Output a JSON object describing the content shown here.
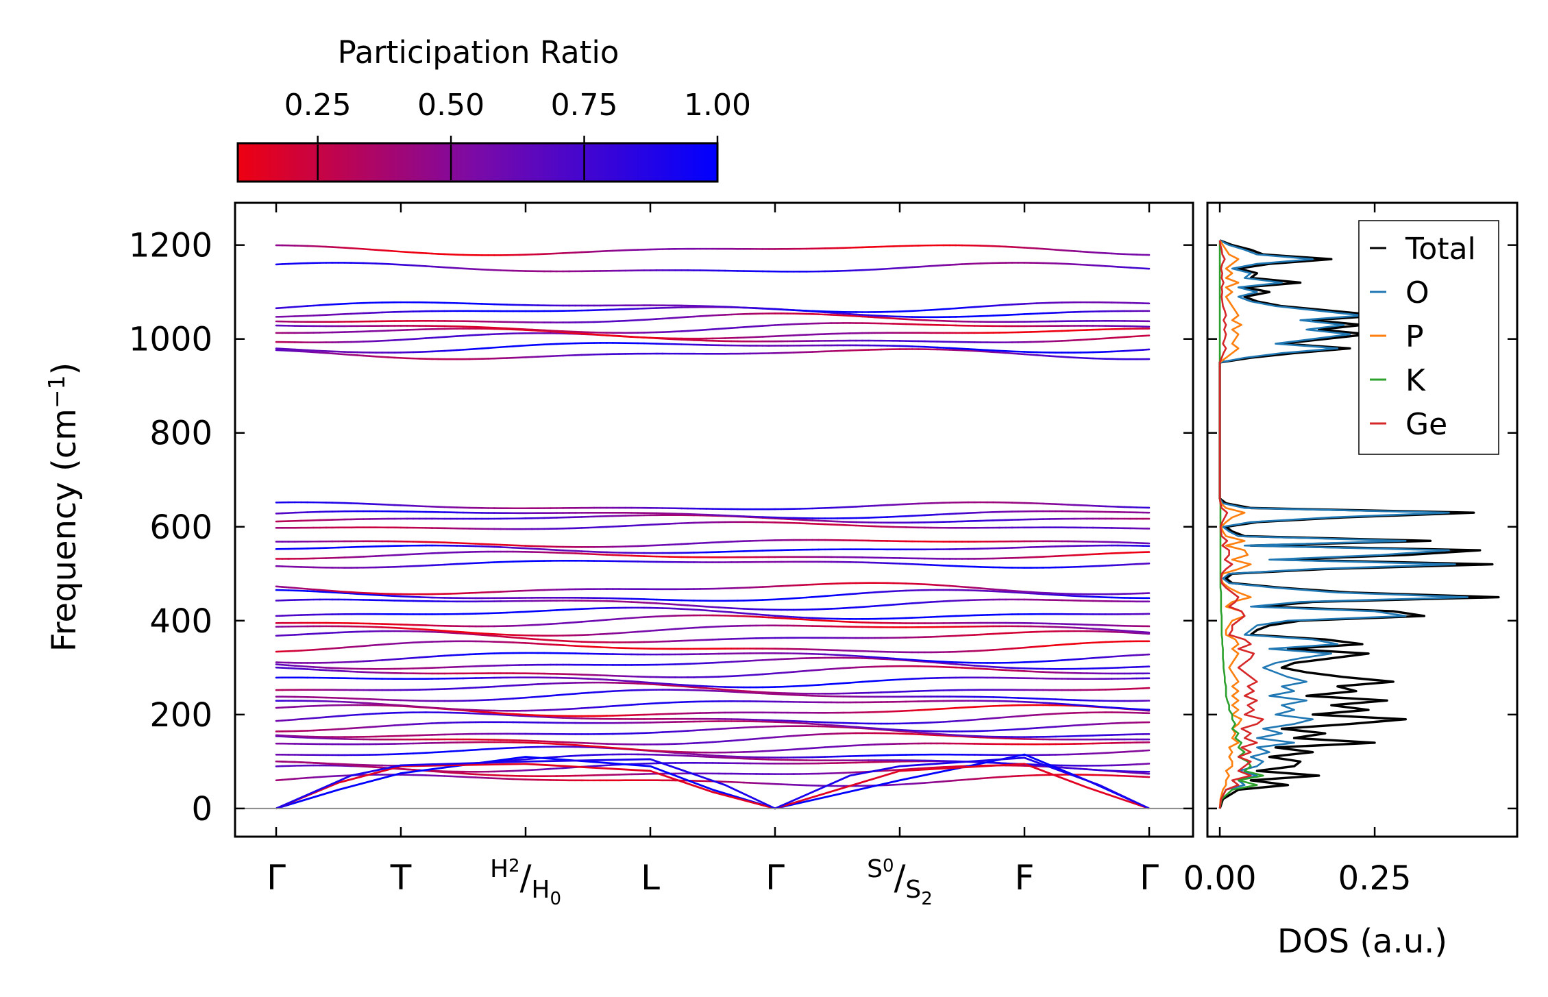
{
  "chart_data": [
    {
      "type": "line",
      "panel": "phonon-band-structure",
      "ylabel": "Frequency (cm",
      "ylabel_sup": "−1",
      "ylabel_end": ")",
      "ylim": [
        -60,
        1290
      ],
      "yticks": [
        0,
        200,
        400,
        600,
        800,
        1000,
        1200
      ],
      "ytick_labels": [
        "0",
        "200",
        "400",
        "600",
        "800",
        "1000",
        "1200"
      ],
      "kpath_range": [
        0,
        7
      ],
      "kpoints": [
        {
          "x": 0,
          "label": "Γ"
        },
        {
          "x": 1,
          "label": "T"
        },
        {
          "x": 2,
          "label_a": "H",
          "sub_a": "2",
          "label_b": "H",
          "sub_b": "0"
        },
        {
          "x": 3,
          "label": "L"
        },
        {
          "x": 4,
          "label": "Γ"
        },
        {
          "x": 5,
          "label_a": "S",
          "sub_a": "0",
          "label_b": "S",
          "sub_b": "2"
        },
        {
          "x": 6,
          "label": "F"
        },
        {
          "x": 7,
          "label": "Γ"
        }
      ],
      "zero_line": 0,
      "acoustic_branches": [
        {
          "name": "acoustic-1",
          "points": [
            [
              0,
              0
            ],
            [
              0.5,
              40
            ],
            [
              1,
              75
            ],
            [
              2,
              110
            ],
            [
              3,
              90
            ],
            [
              3.5,
              40
            ],
            [
              4,
              0
            ],
            [
              5,
              60
            ],
            [
              6,
              115
            ],
            [
              6.5,
              60
            ],
            [
              7,
              0
            ]
          ]
        },
        {
          "name": "acoustic-2",
          "points": [
            [
              0,
              0
            ],
            [
              0.5,
              55
            ],
            [
              1,
              90
            ],
            [
              2,
              95
            ],
            [
              3,
              80
            ],
            [
              3.5,
              35
            ],
            [
              4,
              0
            ],
            [
              5,
              80
            ],
            [
              6,
              95
            ],
            [
              6.5,
              45
            ],
            [
              7,
              0
            ]
          ]
        },
        {
          "name": "acoustic-3",
          "points": [
            [
              0,
              0
            ],
            [
              0.6,
              70
            ],
            [
              1,
              92
            ],
            [
              2,
              100
            ],
            [
              3,
              105
            ],
            [
              3.6,
              50
            ],
            [
              4,
              0
            ],
            [
              4.6,
              70
            ],
            [
              5,
              90
            ],
            [
              6,
              108
            ],
            [
              6.6,
              50
            ],
            [
              7,
              0
            ]
          ]
        }
      ],
      "optical_band_levels": [
        60,
        78,
        92,
        103,
        118,
        133,
        148,
        162,
        178,
        192,
        207,
        222,
        240,
        255,
        272,
        290,
        308,
        324,
        343,
        365,
        382,
        398,
        415,
        437,
        452,
        468,
        522,
        538,
        552,
        566,
        601,
        617,
        627,
        643,
        968,
        983,
        1000,
        1012,
        1025,
        1042,
        1058,
        1069,
        1150,
        1190
      ],
      "colorbar": {
        "label": "Participation Ratio",
        "range": [
          0.1,
          1.0
        ],
        "ticks": [
          0.25,
          0.5,
          0.75,
          1.0
        ],
        "tick_labels": [
          "0.25",
          "0.50",
          "0.75",
          "1.00"
        ],
        "color_low": "#ee0011",
        "color_mid": "#7a0aa8",
        "color_high": "#0000ff"
      }
    },
    {
      "type": "line",
      "panel": "density-of-states",
      "xlabel": "DOS (a.u.)",
      "xlim": [
        -0.02,
        0.48
      ],
      "xticks": [
        0.0,
        0.25
      ],
      "xtick_labels": [
        "0.00",
        "0.25"
      ],
      "ylim": [
        -60,
        1290
      ],
      "frequency": [
        0,
        20,
        40,
        50,
        60,
        70,
        80,
        90,
        100,
        110,
        120,
        130,
        140,
        150,
        160,
        170,
        180,
        190,
        200,
        210,
        220,
        230,
        240,
        250,
        260,
        270,
        280,
        290,
        300,
        310,
        320,
        330,
        340,
        350,
        360,
        370,
        380,
        390,
        400,
        410,
        420,
        430,
        440,
        450,
        460,
        470,
        480,
        490,
        500,
        510,
        520,
        530,
        540,
        550,
        560,
        570,
        580,
        590,
        600,
        610,
        620,
        630,
        640,
        650,
        660,
        700,
        800,
        900,
        950,
        960,
        970,
        980,
        990,
        1000,
        1010,
        1020,
        1030,
        1040,
        1050,
        1060,
        1070,
        1080,
        1090,
        1100,
        1110,
        1120,
        1130,
        1140,
        1150,
        1160,
        1170,
        1180,
        1190,
        1200,
        1210
      ],
      "series": [
        {
          "name": "Total",
          "color": "#000000",
          "values": [
            0.0,
            0.005,
            0.03,
            0.11,
            0.05,
            0.16,
            0.06,
            0.12,
            0.13,
            0.08,
            0.15,
            0.09,
            0.25,
            0.12,
            0.17,
            0.1,
            0.21,
            0.3,
            0.15,
            0.24,
            0.18,
            0.27,
            0.14,
            0.22,
            0.19,
            0.28,
            0.2,
            0.14,
            0.1,
            0.12,
            0.18,
            0.24,
            0.11,
            0.23,
            0.17,
            0.05,
            0.06,
            0.08,
            0.13,
            0.33,
            0.28,
            0.07,
            0.15,
            0.45,
            0.21,
            0.1,
            0.02,
            0.01,
            0.02,
            0.17,
            0.44,
            0.1,
            0.3,
            0.42,
            0.05,
            0.34,
            0.04,
            0.02,
            0.01,
            0.06,
            0.2,
            0.41,
            0.05,
            0.01,
            0.0,
            0.0,
            0.0,
            0.0,
            0.0,
            0.05,
            0.12,
            0.21,
            0.1,
            0.17,
            0.24,
            0.16,
            0.23,
            0.15,
            0.26,
            0.18,
            0.1,
            0.06,
            0.04,
            0.08,
            0.04,
            0.13,
            0.05,
            0.06,
            0.03,
            0.08,
            0.18,
            0.07,
            0.05,
            0.02,
            0.0
          ]
        },
        {
          "name": "O",
          "color": "#1f77b4",
          "values": [
            0.0,
            0.002,
            0.01,
            0.04,
            0.03,
            0.06,
            0.03,
            0.06,
            0.07,
            0.05,
            0.08,
            0.06,
            0.12,
            0.06,
            0.1,
            0.07,
            0.12,
            0.15,
            0.09,
            0.12,
            0.1,
            0.14,
            0.08,
            0.12,
            0.1,
            0.14,
            0.11,
            0.09,
            0.07,
            0.09,
            0.13,
            0.18,
            0.08,
            0.19,
            0.15,
            0.04,
            0.05,
            0.06,
            0.11,
            0.3,
            0.25,
            0.05,
            0.13,
            0.4,
            0.19,
            0.09,
            0.015,
            0.005,
            0.015,
            0.15,
            0.38,
            0.08,
            0.26,
            0.37,
            0.04,
            0.3,
            0.03,
            0.015,
            0.005,
            0.05,
            0.18,
            0.37,
            0.04,
            0.005,
            0.0,
            0.0,
            0.0,
            0.0,
            0.0,
            0.04,
            0.1,
            0.19,
            0.09,
            0.15,
            0.21,
            0.14,
            0.2,
            0.13,
            0.23,
            0.16,
            0.09,
            0.05,
            0.03,
            0.06,
            0.03,
            0.1,
            0.04,
            0.05,
            0.02,
            0.06,
            0.15,
            0.06,
            0.04,
            0.015,
            0.0
          ]
        },
        {
          "name": "P",
          "color": "#ff7f0e",
          "values": [
            0.0,
            0.001,
            0.005,
            0.01,
            0.01,
            0.015,
            0.01,
            0.02,
            0.02,
            0.015,
            0.02,
            0.015,
            0.03,
            0.02,
            0.025,
            0.02,
            0.03,
            0.035,
            0.02,
            0.03,
            0.02,
            0.03,
            0.02,
            0.03,
            0.02,
            0.03,
            0.025,
            0.02,
            0.015,
            0.02,
            0.025,
            0.03,
            0.02,
            0.03,
            0.025,
            0.01,
            0.01,
            0.015,
            0.02,
            0.04,
            0.035,
            0.01,
            0.02,
            0.05,
            0.03,
            0.015,
            0.005,
            0.002,
            0.005,
            0.03,
            0.05,
            0.02,
            0.045,
            0.04,
            0.01,
            0.04,
            0.01,
            0.005,
            0.002,
            0.01,
            0.02,
            0.04,
            0.01,
            0.002,
            0.0,
            0.0,
            0.0,
            0.0,
            0.0,
            0.01,
            0.02,
            0.03,
            0.02,
            0.025,
            0.03,
            0.02,
            0.035,
            0.02,
            0.03,
            0.025,
            0.02,
            0.015,
            0.01,
            0.02,
            0.01,
            0.03,
            0.01,
            0.02,
            0.01,
            0.02,
            0.03,
            0.015,
            0.01,
            0.005,
            0.0
          ]
        },
        {
          "name": "K",
          "color": "#2ca02c",
          "values": [
            0.0,
            0.003,
            0.02,
            0.06,
            0.03,
            0.07,
            0.04,
            0.05,
            0.045,
            0.03,
            0.04,
            0.03,
            0.035,
            0.025,
            0.03,
            0.02,
            0.025,
            0.02,
            0.02,
            0.015,
            0.015,
            0.012,
            0.01,
            0.01,
            0.01,
            0.008,
            0.008,
            0.007,
            0.006,
            0.006,
            0.005,
            0.005,
            0.005,
            0.004,
            0.004,
            0.003,
            0.003,
            0.003,
            0.003,
            0.003,
            0.002,
            0.002,
            0.002,
            0.002,
            0.002,
            0.001,
            0.001,
            0.001,
            0.001,
            0.001,
            0.001,
            0.001,
            0.001,
            0.001,
            0.001,
            0.001,
            0.001,
            0.001,
            0.001,
            0.001,
            0.001,
            0.001,
            0.001,
            0.001,
            0.0,
            0.0,
            0.0,
            0.0,
            0.0,
            0.0,
            0.0,
            0.0,
            0.0,
            0.0,
            0.0,
            0.0,
            0.0,
            0.0,
            0.0,
            0.0,
            0.0,
            0.0,
            0.0,
            0.0,
            0.0,
            0.0,
            0.0,
            0.0,
            0.0,
            0.0,
            0.0,
            0.0,
            0.0,
            0.0,
            0.0
          ]
        },
        {
          "name": "Ge",
          "color": "#d62728",
          "values": [
            0.0,
            0.002,
            0.01,
            0.03,
            0.02,
            0.05,
            0.03,
            0.04,
            0.05,
            0.03,
            0.05,
            0.035,
            0.06,
            0.04,
            0.05,
            0.035,
            0.06,
            0.07,
            0.04,
            0.055,
            0.045,
            0.06,
            0.04,
            0.055,
            0.045,
            0.06,
            0.05,
            0.04,
            0.03,
            0.04,
            0.05,
            0.055,
            0.03,
            0.05,
            0.04,
            0.015,
            0.02,
            0.02,
            0.03,
            0.04,
            0.035,
            0.015,
            0.025,
            0.03,
            0.02,
            0.01,
            0.003,
            0.002,
            0.003,
            0.01,
            0.02,
            0.008,
            0.015,
            0.015,
            0.004,
            0.012,
            0.003,
            0.002,
            0.001,
            0.004,
            0.008,
            0.012,
            0.003,
            0.001,
            0.0,
            0.0,
            0.0,
            0.0,
            0.0,
            0.003,
            0.006,
            0.01,
            0.005,
            0.008,
            0.01,
            0.007,
            0.01,
            0.006,
            0.01,
            0.008,
            0.005,
            0.004,
            0.003,
            0.004,
            0.003,
            0.006,
            0.003,
            0.004,
            0.002,
            0.004,
            0.008,
            0.004,
            0.003,
            0.001,
            0.0
          ]
        }
      ],
      "legend": {
        "entries": [
          "Total",
          "O",
          "P",
          "K",
          "Ge"
        ],
        "position": "top-right"
      }
    }
  ]
}
